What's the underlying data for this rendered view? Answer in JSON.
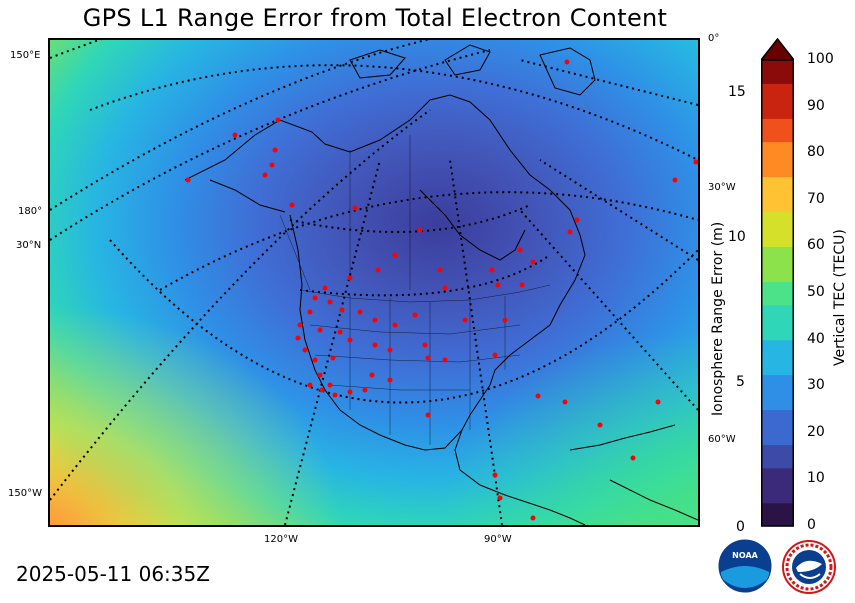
{
  "title": "GPS L1 Range Error from Total Electron Content",
  "timestamp": "2025-05-11 06:35Z",
  "map": {
    "lon_labels_bottom": [
      "120°W",
      "90°W"
    ],
    "lat_labels_left": [
      "150°E",
      "180°",
      "30°N",
      "150°W"
    ],
    "labels_right": [
      "0°",
      "30°W",
      "60°W"
    ],
    "station_marker_color": "#ff0000"
  },
  "colorbar": {
    "label": "Vertical TEC (TECU)",
    "ticks": [
      "0",
      "10",
      "20",
      "30",
      "40",
      "50",
      "60",
      "70",
      "80",
      "90",
      "100"
    ],
    "range": [
      0,
      100
    ],
    "colors": [
      "#2a1446",
      "#3b2a7a",
      "#3d4aa8",
      "#3a6ad0",
      "#2f8fe6",
      "#27b5e3",
      "#2fd6b8",
      "#4be28a",
      "#8be24a",
      "#d4e02a",
      "#ffc233",
      "#ff8a24",
      "#f0501c",
      "#c8240f",
      "#8b0a0a"
    ],
    "extend_color": "#6a0000"
  },
  "range_axis": {
    "label": "Ionosphere Range Error (m)",
    "ticks": [
      "0",
      "5",
      "10",
      "15"
    ]
  },
  "logos": {
    "noaa": "NOAA",
    "nws_ring": "NATIONAL WEATHER SERVICE"
  }
}
